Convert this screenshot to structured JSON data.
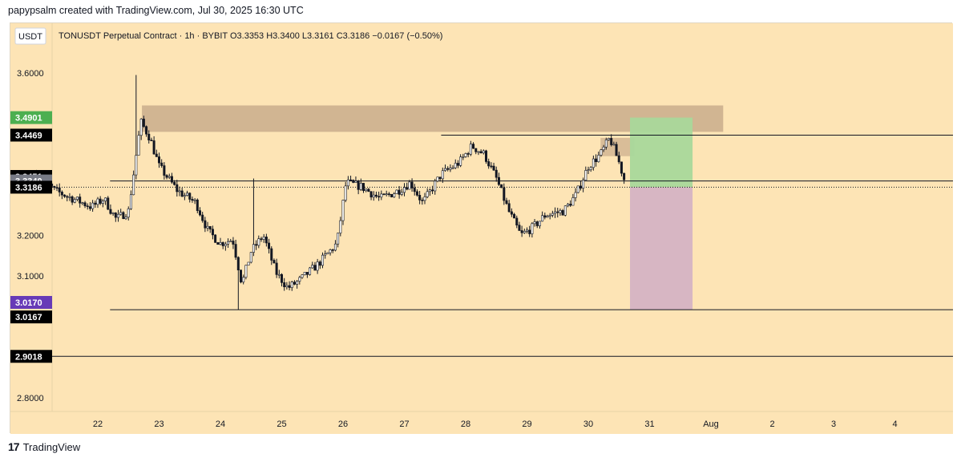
{
  "caption": "papypsalm created with TradingView.com, Jul 30, 2025 16:30 UTC",
  "footer": {
    "logo_text": "TradingView",
    "logo_mark": "17"
  },
  "colors": {
    "background": "#fde4b5",
    "candle": "#131722",
    "supply_zone": "#c9ad8c",
    "profit_zone": "#a9d89b",
    "loss_zone": "#d5b3c4",
    "label_green": "#4caf50",
    "label_purple": "#673ab7",
    "label_gray": "#787b86",
    "label_black": "#000000"
  },
  "chart_data": {
    "type": "candlestick",
    "symbol": "TONUSDT Perpetual Contract",
    "interval": "1h",
    "exchange": "BYBIT",
    "header_text": "TONUSDT Perpetual Contract · 1h · BYBIT",
    "ohlc_text": "O3.3353  H3.3400  L3.3161  C3.3186  −0.0167 (−0.50%)",
    "currency": "USDT",
    "ohlc": {
      "open": 3.3353,
      "high": 3.34,
      "low": 3.3161,
      "close": 3.3186,
      "change": -0.0167,
      "change_pct": -0.5
    },
    "ylim": [
      2.74,
      3.66
    ],
    "y_ticks": [
      "3.6000",
      "3.2000",
      "3.1000",
      "2.8000"
    ],
    "x_tick_labels": [
      "22",
      "23",
      "24",
      "25",
      "26",
      "27",
      "28",
      "29",
      "30",
      "31",
      "Aug",
      "2",
      "3",
      "4"
    ],
    "price_labels": [
      {
        "value": 3.4901,
        "text": "3.4901",
        "color": "#4caf50"
      },
      {
        "value": 3.4469,
        "text": "3.4469",
        "color": "#000000"
      },
      {
        "value": 3.3451,
        "text": "3.3451",
        "color": "#000000"
      },
      {
        "value": 3.334,
        "text": "3.3340",
        "color": "#787b86"
      },
      {
        "value": 3.3186,
        "text": "3.3186",
        "color": "#000000"
      },
      {
        "value": 3.017,
        "text": "3.0170",
        "color": "#673ab7"
      },
      {
        "value": 3.0167,
        "text": "3.0167",
        "color": "#000000"
      },
      {
        "value": 2.9018,
        "text": "2.9018",
        "color": "#000000"
      }
    ],
    "horizontal_levels": [
      3.4469,
      3.334,
      3.0167,
      2.9018
    ],
    "close_line": 3.3186,
    "zones": {
      "supply": {
        "low": 3.455,
        "high": 3.52,
        "from": "22.6",
        "to": "1 Aug+"
      },
      "position": {
        "entry": 3.3186,
        "target": 3.4901,
        "stop": 3.017
      }
    },
    "close_path": [
      [
        21.0,
        3.35
      ],
      [
        21.3,
        3.31
      ],
      [
        21.6,
        3.29
      ],
      [
        21.9,
        3.27
      ],
      [
        22.1,
        3.29
      ],
      [
        22.3,
        3.24
      ],
      [
        22.5,
        3.26
      ],
      [
        22.7,
        3.48
      ],
      [
        22.85,
        3.44
      ],
      [
        23.0,
        3.37
      ],
      [
        23.3,
        3.31
      ],
      [
        23.6,
        3.28
      ],
      [
        23.8,
        3.21
      ],
      [
        24.0,
        3.18
      ],
      [
        24.2,
        3.19
      ],
      [
        24.35,
        3.08
      ],
      [
        24.5,
        3.16
      ],
      [
        24.7,
        3.2
      ],
      [
        24.9,
        3.11
      ],
      [
        25.1,
        3.07
      ],
      [
        25.3,
        3.09
      ],
      [
        25.6,
        3.13
      ],
      [
        25.9,
        3.18
      ],
      [
        26.05,
        3.33
      ],
      [
        26.3,
        3.32
      ],
      [
        26.6,
        3.29
      ],
      [
        26.9,
        3.31
      ],
      [
        27.1,
        3.33
      ],
      [
        27.3,
        3.28
      ],
      [
        27.6,
        3.35
      ],
      [
        27.9,
        3.38
      ],
      [
        28.1,
        3.42
      ],
      [
        28.3,
        3.4
      ],
      [
        28.5,
        3.34
      ],
      [
        28.7,
        3.26
      ],
      [
        28.9,
        3.2
      ],
      [
        29.1,
        3.22
      ],
      [
        29.3,
        3.25
      ],
      [
        29.6,
        3.26
      ],
      [
        29.8,
        3.3
      ],
      [
        30.0,
        3.37
      ],
      [
        30.2,
        3.4
      ],
      [
        30.35,
        3.44
      ],
      [
        30.5,
        3.38
      ],
      [
        30.62,
        3.32
      ]
    ]
  }
}
